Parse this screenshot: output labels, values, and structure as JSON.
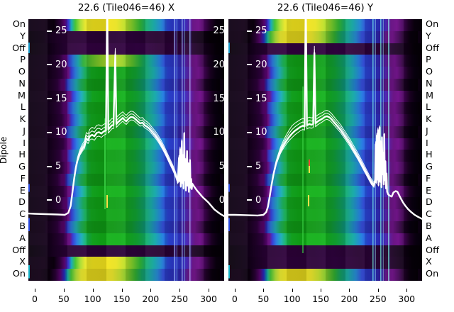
{
  "figure": {
    "ylabel": "Dipole",
    "row_labels": [
      "On",
      "Y",
      "Off",
      "P",
      "O",
      "N",
      "M",
      "L",
      "K",
      "J",
      "I",
      "H",
      "G",
      "F",
      "E",
      "D",
      "C",
      "B",
      "A",
      "Off",
      "X",
      "On"
    ],
    "panels": [
      {
        "key": "X",
        "title": "22.6 (Tile046=46) X"
      },
      {
        "key": "Y",
        "title": "22.6 (Tile046=46) Y"
      }
    ],
    "colors": {
      "curve": "#ffffff",
      "background": "#ffffff",
      "text": "#000000",
      "heatmap_palette": [
        "#0a0010",
        "#5e0575",
        "#2737cf",
        "#12a2ab",
        "#12a41c",
        "#f2e722"
      ]
    }
  },
  "chart_data": [
    {
      "type": "heatmap",
      "panel": "X",
      "title": "22.6 (Tile046=46) X",
      "x_range": [
        -11,
        327
      ],
      "x_ticks": [
        0,
        50,
        100,
        150,
        200,
        250,
        300
      ],
      "rows": [
        "On",
        "Y",
        "Off",
        "P",
        "O",
        "N",
        "M",
        "L",
        "K",
        "J",
        "I",
        "H",
        "G",
        "F",
        "E",
        "D",
        "C",
        "B",
        "A",
        "Off",
        "X",
        "On"
      ],
      "row_intensity": [
        "high",
        "off",
        "off",
        "midhot",
        "mid",
        "mid",
        "mid",
        "mid",
        "mid",
        "mid",
        "mid",
        "mid",
        "mid",
        "mid",
        "mid",
        "mid",
        "mid",
        "mid",
        "mid",
        "off",
        "high",
        "high"
      ],
      "inner_y_ticks": [
        25,
        20,
        15,
        10,
        5,
        0
      ],
      "inner_y_ticks_right": true,
      "overlay_line": {
        "units": "dB",
        "series": [
          [
            -11,
            -1.9
          ],
          [
            0,
            -1.95
          ],
          [
            20,
            -2.0
          ],
          [
            40,
            -2.05
          ],
          [
            52,
            -2.1
          ],
          [
            58,
            -1.8
          ],
          [
            62,
            -0.8
          ],
          [
            65,
            1.2
          ],
          [
            68,
            3.2
          ],
          [
            71,
            4.9
          ],
          [
            74,
            6.0
          ],
          [
            78,
            7.0
          ],
          [
            82,
            7.6
          ],
          [
            86,
            8.1
          ],
          [
            89,
            9.2
          ],
          [
            92,
            8.9
          ],
          [
            95,
            9.5
          ],
          [
            99,
            9.7
          ],
          [
            103,
            9.5
          ],
          [
            107,
            10.0
          ],
          [
            111,
            10.1
          ],
          [
            115,
            9.9
          ],
          [
            119,
            10.2
          ],
          [
            123,
            10.35
          ],
          [
            125,
            30
          ],
          [
            127,
            10.5
          ],
          [
            130,
            10.8
          ],
          [
            133,
            11.1
          ],
          [
            136,
            11.15
          ],
          [
            139,
            21.5
          ],
          [
            141,
            11.3
          ],
          [
            144,
            11.6
          ],
          [
            148,
            11.9
          ],
          [
            152,
            12.2
          ],
          [
            155,
            11.9
          ],
          [
            158,
            11.7
          ],
          [
            162,
            12.1
          ],
          [
            166,
            12.35
          ],
          [
            170,
            12.3
          ],
          [
            174,
            12.0
          ],
          [
            178,
            11.7
          ],
          [
            182,
            11.4
          ],
          [
            186,
            11.5
          ],
          [
            190,
            11.1
          ],
          [
            194,
            10.9
          ],
          [
            198,
            10.6
          ],
          [
            203,
            10.1
          ],
          [
            208,
            9.6
          ],
          [
            213,
            9.0
          ],
          [
            218,
            8.3
          ],
          [
            223,
            7.5
          ],
          [
            228,
            6.6
          ],
          [
            233,
            5.7
          ],
          [
            238,
            4.8
          ],
          [
            242,
            4.0
          ],
          [
            245,
            3.3
          ],
          [
            247,
            2.7
          ],
          [
            249,
            6.3
          ],
          [
            250,
            2.9
          ],
          [
            251,
            7.6
          ],
          [
            252,
            2.1
          ],
          [
            253,
            5.4
          ],
          [
            254,
            8.8
          ],
          [
            255,
            2.6
          ],
          [
            256,
            6.6
          ],
          [
            257,
            1.8
          ],
          [
            258,
            9.9
          ],
          [
            259,
            3.0
          ],
          [
            260,
            6.1
          ],
          [
            261,
            1.5
          ],
          [
            262,
            4.8
          ],
          [
            263,
            7.3
          ],
          [
            264,
            2.2
          ],
          [
            265,
            5.5
          ],
          [
            266,
            1.3
          ],
          [
            267,
            3.8
          ],
          [
            268,
            6.0
          ],
          [
            269,
            1.9
          ],
          [
            270,
            3.2
          ],
          [
            271,
            1.7
          ],
          [
            272,
            2.5
          ],
          [
            275,
            2.1
          ],
          [
            280,
            1.5
          ],
          [
            285,
            1.0
          ],
          [
            290,
            0.5
          ],
          [
            295,
            0.1
          ],
          [
            300,
            -0.3
          ],
          [
            305,
            -0.8
          ],
          [
            310,
            -1.3
          ],
          [
            316,
            -1.7
          ],
          [
            321,
            -2.0
          ],
          [
            327,
            -2.3
          ]
        ]
      }
    },
    {
      "type": "heatmap",
      "panel": "Y",
      "title": "22.6 (Tile046=46) Y",
      "x_range": [
        -11,
        327
      ],
      "x_ticks": [
        0,
        50,
        100,
        150,
        200,
        250,
        300
      ],
      "rows": [
        "On",
        "Y",
        "Off",
        "P",
        "O",
        "N",
        "M",
        "L",
        "K",
        "J",
        "I",
        "H",
        "G",
        "F",
        "E",
        "D",
        "C",
        "B",
        "A",
        "Off",
        "X",
        "On"
      ],
      "row_intensity": [
        "high",
        "high",
        "off",
        "mid",
        "mid",
        "mid",
        "mid",
        "mid",
        "mid",
        "mid",
        "mid",
        "mid",
        "mid",
        "mid",
        "mid",
        "mid",
        "mid",
        "mid",
        "mid",
        "off",
        "off",
        "high"
      ],
      "inner_y_ticks": [
        25,
        20,
        15,
        10,
        5,
        0
      ],
      "inner_y_ticks_right": false,
      "overlay_line": {
        "units": "dB",
        "series": [
          [
            -11,
            -2.1
          ],
          [
            0,
            -2.1
          ],
          [
            20,
            -2.15
          ],
          [
            40,
            -2.2
          ],
          [
            50,
            -2.1
          ],
          [
            55,
            -1.7
          ],
          [
            58,
            -0.9
          ],
          [
            61,
            0.6
          ],
          [
            64,
            2.2
          ],
          [
            68,
            4.0
          ],
          [
            72,
            5.4
          ],
          [
            76,
            6.4
          ],
          [
            80,
            7.3
          ],
          [
            85,
            8.1
          ],
          [
            90,
            8.8
          ],
          [
            95,
            9.4
          ],
          [
            100,
            9.9
          ],
          [
            105,
            10.3
          ],
          [
            110,
            10.6
          ],
          [
            115,
            10.9
          ],
          [
            119,
            11.05
          ],
          [
            122,
            10.95
          ],
          [
            124,
            30
          ],
          [
            126,
            11.1
          ],
          [
            130,
            11.3
          ],
          [
            134,
            11.2
          ],
          [
            137,
            11.3
          ],
          [
            139,
            21.8
          ],
          [
            141,
            11.4
          ],
          [
            145,
            11.7
          ],
          [
            149,
            11.9
          ],
          [
            153,
            12.1
          ],
          [
            157,
            12.35
          ],
          [
            161,
            12.45
          ],
          [
            165,
            12.3
          ],
          [
            169,
            12.0
          ],
          [
            173,
            11.6
          ],
          [
            177,
            11.2
          ],
          [
            181,
            10.8
          ],
          [
            185,
            10.4
          ],
          [
            189,
            9.9
          ],
          [
            193,
            9.4
          ],
          [
            197,
            8.9
          ],
          [
            201,
            8.4
          ],
          [
            205,
            7.8
          ],
          [
            210,
            7.1
          ],
          [
            215,
            6.4
          ],
          [
            220,
            5.6
          ],
          [
            225,
            4.8
          ],
          [
            230,
            4.0
          ],
          [
            235,
            3.2
          ],
          [
            239,
            2.6
          ],
          [
            243,
            2.2
          ],
          [
            245,
            3.0
          ],
          [
            246,
            8.3
          ],
          [
            247,
            2.7
          ],
          [
            248,
            9.6
          ],
          [
            249,
            3.2
          ],
          [
            250,
            10.4
          ],
          [
            251,
            2.3
          ],
          [
            252,
            7.7
          ],
          [
            253,
            10.8
          ],
          [
            254,
            2.8
          ],
          [
            255,
            8.6
          ],
          [
            256,
            2.0
          ],
          [
            257,
            9.3
          ],
          [
            258,
            3.9
          ],
          [
            259,
            7.0
          ],
          [
            260,
            2.4
          ],
          [
            261,
            9.8
          ],
          [
            262,
            3.0
          ],
          [
            263,
            5.8
          ],
          [
            264,
            1.8
          ],
          [
            265,
            4.0
          ],
          [
            266,
            1.3
          ],
          [
            268,
            0.9
          ],
          [
            271,
            0.7
          ],
          [
            274,
            0.6
          ],
          [
            277,
            1.2
          ],
          [
            281,
            1.4
          ],
          [
            284,
            1.3
          ],
          [
            287,
            0.8
          ],
          [
            290,
            0.3
          ],
          [
            294,
            -0.3
          ],
          [
            298,
            -0.8
          ],
          [
            303,
            -1.3
          ],
          [
            308,
            -1.7
          ],
          [
            314,
            -2.1
          ],
          [
            320,
            -2.4
          ],
          [
            327,
            -2.7
          ]
        ]
      }
    }
  ]
}
